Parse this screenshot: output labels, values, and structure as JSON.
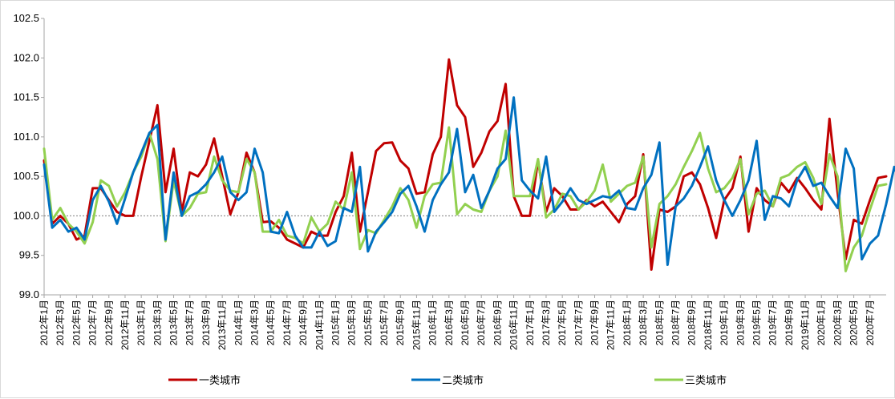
{
  "chart_data": {
    "type": "line",
    "title": "",
    "xlabel": "",
    "ylabel": "",
    "ylim": [
      99.0,
      102.5
    ],
    "yticks": [
      "99.0",
      "99.5",
      "100.0",
      "100.5",
      "101.0",
      "101.5",
      "102.0",
      "102.5"
    ],
    "reference_line": 100.0,
    "grid": false,
    "legend_position": "bottom",
    "x_tick_labels": [
      "2012年1月",
      "2012年3月",
      "2012年5月",
      "2012年7月",
      "2012年9月",
      "2012年11月",
      "2013年1月",
      "2013年3月",
      "2013年5月",
      "2013年7月",
      "2013年9月",
      "2013年11月",
      "2014年1月",
      "2014年3月",
      "2014年5月",
      "2014年7月",
      "2014年9月",
      "2014年11月",
      "2015年1月",
      "2015年3月",
      "2015年5月",
      "2015年7月",
      "2015年9月",
      "2015年11月",
      "2016年1月",
      "2016年3月",
      "2016年5月",
      "2016年7月",
      "2016年9月",
      "2016年11月",
      "2017年1月",
      "2017年3月",
      "2017年5月",
      "2017年7月",
      "2017年9月",
      "2017年11月",
      "2018年1月",
      "2018年3月",
      "2018年5月",
      "2018年7月",
      "2018年9月",
      "2018年11月",
      "2019年1月",
      "2019年3月",
      "2019年5月",
      "2019年7月",
      "2019年9月",
      "2019年11月",
      "2020年1月",
      "2020年3月",
      "2020年5月",
      "2020年7月"
    ],
    "series": [
      {
        "name": "一类城市",
        "color": "#c00000",
        "values": [
          100.7,
          99.9,
          100.0,
          99.9,
          99.7,
          99.75,
          100.35,
          100.35,
          100.2,
          100.05,
          100.0,
          100.0,
          100.5,
          100.95,
          101.4,
          100.3,
          100.85,
          100.05,
          100.55,
          100.5,
          100.65,
          100.98,
          100.5,
          100.02,
          100.3,
          100.8,
          100.55,
          99.92,
          99.93,
          99.85,
          99.7,
          99.65,
          99.6,
          99.8,
          99.75,
          99.75,
          100.05,
          100.25,
          100.8,
          99.8,
          100.3,
          100.82,
          100.92,
          100.93,
          100.7,
          100.6,
          100.28,
          100.3,
          100.78,
          101.0,
          101.98,
          101.4,
          101.25,
          100.62,
          100.8,
          101.07,
          101.2,
          101.67,
          100.25,
          100.0,
          100.0,
          100.7,
          100.05,
          100.35,
          100.25,
          100.08,
          100.08,
          100.2,
          100.12,
          100.18,
          100.05,
          99.92,
          100.15,
          100.25,
          100.78,
          99.32,
          100.08,
          100.05,
          100.12,
          100.5,
          100.55,
          100.4,
          100.1,
          99.72,
          100.2,
          100.35,
          100.75,
          99.8,
          100.35,
          100.2,
          100.12,
          100.42,
          100.3,
          100.48,
          100.35,
          100.2,
          100.08,
          101.23,
          100.3,
          99.45,
          99.95,
          99.9,
          100.2,
          100.48,
          100.5
        ]
      },
      {
        "name": "二类城市",
        "color": "#0070c0",
        "values": [
          100.65,
          99.85,
          99.95,
          99.8,
          99.85,
          99.7,
          100.2,
          100.38,
          100.18,
          99.9,
          100.22,
          100.55,
          100.8,
          101.05,
          101.15,
          99.7,
          100.55,
          100.0,
          100.25,
          100.3,
          100.4,
          100.55,
          100.75,
          100.3,
          100.2,
          100.3,
          100.85,
          100.55,
          99.8,
          99.78,
          100.05,
          99.75,
          99.6,
          99.6,
          99.8,
          99.62,
          99.68,
          100.1,
          100.05,
          100.62,
          99.55,
          99.8,
          99.92,
          100.05,
          100.28,
          100.38,
          100.12,
          99.8,
          100.2,
          100.4,
          100.55,
          101.1,
          100.3,
          100.52,
          100.1,
          100.32,
          100.6,
          100.72,
          101.5,
          100.45,
          100.32,
          100.22,
          100.75,
          100.05,
          100.18,
          100.35,
          100.2,
          100.15,
          100.2,
          100.25,
          100.23,
          100.32,
          100.1,
          100.08,
          100.35,
          100.52,
          100.93,
          99.38,
          100.12,
          100.22,
          100.38,
          100.62,
          100.88,
          100.45,
          100.2,
          100.0,
          100.2,
          100.45,
          100.95,
          99.95,
          100.25,
          100.22,
          100.12,
          100.45,
          100.62,
          100.38,
          100.42,
          100.25,
          100.1,
          100.85,
          100.6,
          99.45,
          99.65,
          99.75,
          100.15,
          100.62,
          100.35
        ]
      },
      {
        "name": "三类城市",
        "color": "#92d050",
        "values": [
          100.85,
          99.95,
          100.1,
          99.9,
          99.8,
          99.65,
          99.92,
          100.45,
          100.38,
          100.12,
          100.3,
          100.55,
          100.75,
          101.05,
          100.72,
          99.68,
          100.45,
          100.0,
          100.1,
          100.28,
          100.3,
          100.75,
          100.45,
          100.32,
          100.3,
          100.72,
          100.55,
          99.8,
          99.8,
          99.95,
          99.75,
          99.72,
          99.65,
          99.98,
          99.8,
          99.9,
          100.18,
          100.08,
          100.55,
          99.58,
          99.82,
          99.78,
          99.95,
          100.12,
          100.35,
          100.2,
          99.85,
          100.25,
          100.4,
          100.42,
          101.12,
          100.02,
          100.15,
          100.08,
          100.05,
          100.32,
          100.5,
          101.08,
          100.25,
          100.25,
          100.25,
          100.72,
          99.98,
          100.08,
          100.28,
          100.25,
          100.08,
          100.18,
          100.32,
          100.65,
          100.18,
          100.28,
          100.38,
          100.42,
          100.75,
          99.6,
          100.15,
          100.25,
          100.4,
          100.62,
          100.82,
          101.05,
          100.6,
          100.3,
          100.35,
          100.48,
          100.72,
          100.02,
          100.28,
          100.32,
          100.12,
          100.48,
          100.52,
          100.62,
          100.68,
          100.48,
          100.15,
          100.78,
          100.5,
          99.3,
          99.6,
          99.75,
          100.08,
          100.38,
          100.4
        ]
      }
    ]
  }
}
